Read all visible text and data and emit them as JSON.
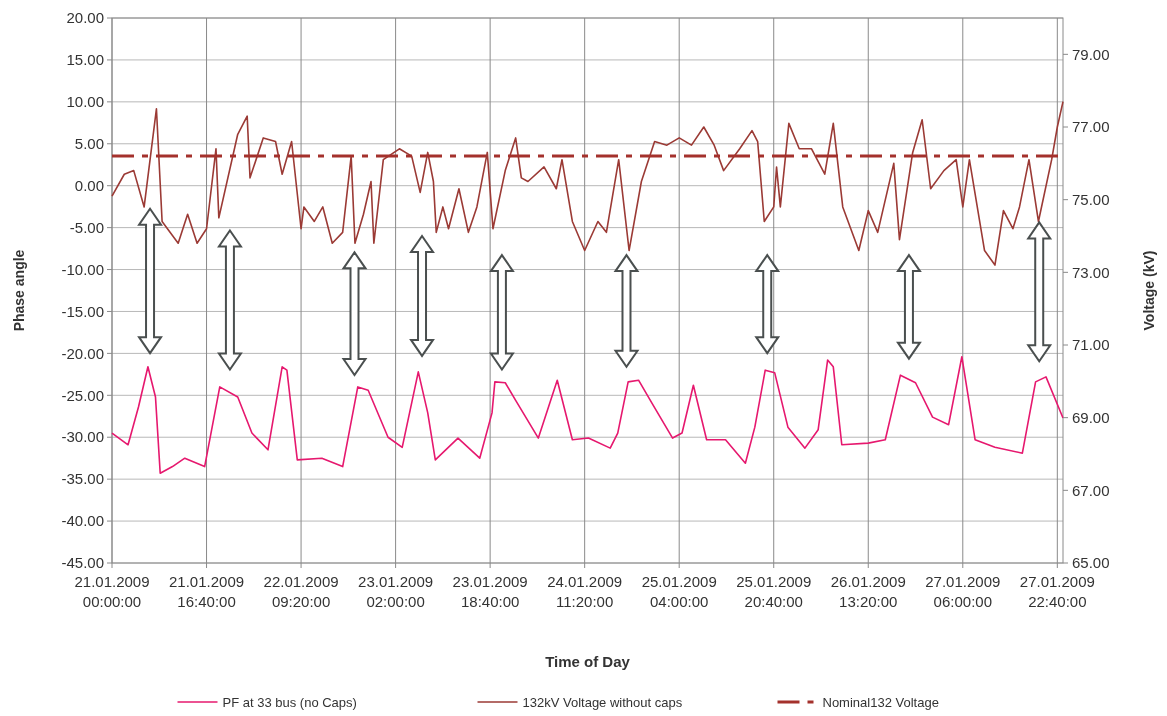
{
  "chart_data": {
    "type": "line",
    "xlabel": "Time of Day",
    "ylabel": "Phase angle",
    "y2label": "Voltage (kV)",
    "xlim": [
      "2009-01-21T00:00",
      "2009-01-27T23:40"
    ],
    "xticks": [
      {
        "value": "2009-01-21T00:00",
        "label": "21.01.2009 00:00:00"
      },
      {
        "value": "2009-01-21T16:40",
        "label": "21.01.2009 16:40:00"
      },
      {
        "value": "2009-01-22T09:20",
        "label": "22.01.2009 09:20:00"
      },
      {
        "value": "2009-01-23T02:00",
        "label": "23.01.2009 02:00:00"
      },
      {
        "value": "2009-01-23T18:40",
        "label": "23.01.2009 18:40:00"
      },
      {
        "value": "2009-01-24T11:20",
        "label": "24.01.2009 11:20:00"
      },
      {
        "value": "2009-01-25T04:00",
        "label": "25.01.2009 04:00:00"
      },
      {
        "value": "2009-01-25T20:40",
        "label": "25.01.2009 20:40:00"
      },
      {
        "value": "2009-01-26T13:20",
        "label": "26.01.2009 13:20:00"
      },
      {
        "value": "2009-01-27T06:00",
        "label": "27.01.2009 06:00:00"
      },
      {
        "value": "2009-01-27T22:40",
        "label": "27.01.2009 22:40:00"
      }
    ],
    "ylim": [
      -45,
      20
    ],
    "yticks": [
      {
        "value": 20,
        "label": "20.00"
      },
      {
        "value": 15,
        "label": "15.00"
      },
      {
        "value": 10,
        "label": "10.00"
      },
      {
        "value": 5,
        "label": "5.00"
      },
      {
        "value": 0,
        "label": "0.00"
      },
      {
        "value": -5,
        "label": "-5.00"
      },
      {
        "value": -10,
        "label": "-10.00"
      },
      {
        "value": -15,
        "label": "-15.00"
      },
      {
        "value": -20,
        "label": "-20.00"
      },
      {
        "value": -25,
        "label": "-25.00"
      },
      {
        "value": -30,
        "label": "-30.00"
      },
      {
        "value": -35,
        "label": "-35.00"
      },
      {
        "value": -40,
        "label": "-40.00"
      },
      {
        "value": -45,
        "label": "-45.00"
      }
    ],
    "y2lim": [
      65,
      80
    ],
    "y2ticks": [
      {
        "value": 65,
        "label": "65.00"
      },
      {
        "value": 67,
        "label": "67.00"
      },
      {
        "value": 69,
        "label": "69.00"
      },
      {
        "value": 71,
        "label": "71.00"
      },
      {
        "value": 73,
        "label": "73.00"
      },
      {
        "value": 75,
        "label": "75.00"
      },
      {
        "value": 77,
        "label": "77.00"
      },
      {
        "value": 79,
        "label": "79.00"
      }
    ],
    "grid": true,
    "legend": "bottom",
    "series": [
      {
        "name": "PF at 33 bus (no Caps)",
        "color": "#e6186e",
        "line_style": "solid",
        "x": [
          "2009-01-21T00:00",
          "2009-01-21T02:50",
          "2009-01-21T04:40",
          "2009-01-21T06:20",
          "2009-01-21T07:40",
          "2009-01-21T08:30",
          "2009-01-21T10:40",
          "2009-01-21T12:50",
          "2009-01-21T16:20",
          "2009-01-21T19:00",
          "2009-01-21T22:10",
          "2009-01-22T00:40",
          "2009-01-22T03:30",
          "2009-01-22T06:00",
          "2009-01-22T06:50",
          "2009-01-22T08:40",
          "2009-01-22T13:00",
          "2009-01-22T16:40",
          "2009-01-22T19:20",
          "2009-01-22T21:10",
          "2009-01-23T00:40",
          "2009-01-23T03:10",
          "2009-01-23T06:00",
          "2009-01-23T07:40",
          "2009-01-23T09:00",
          "2009-01-23T13:00",
          "2009-01-23T16:50",
          "2009-01-23T19:00",
          "2009-01-23T19:30",
          "2009-01-23T21:20",
          "2009-01-23T23:10",
          "2009-01-24T03:10",
          "2009-01-24T06:30",
          "2009-01-24T09:10",
          "2009-01-24T12:00",
          "2009-01-24T15:50",
          "2009-01-24T17:10",
          "2009-01-24T19:00",
          "2009-01-24T20:50",
          "2009-01-24T23:10",
          "2009-01-25T02:50",
          "2009-01-25T04:30",
          "2009-01-25T06:30",
          "2009-01-25T08:50",
          "2009-01-25T12:10",
          "2009-01-25T15:40",
          "2009-01-25T17:20",
          "2009-01-25T19:10",
          "2009-01-25T20:50",
          "2009-01-25T23:10",
          "2009-01-26T02:10",
          "2009-01-26T04:30",
          "2009-01-26T06:10",
          "2009-01-26T07:10",
          "2009-01-26T08:40",
          "2009-01-26T13:20",
          "2009-01-26T16:20",
          "2009-01-26T19:00",
          "2009-01-26T21:40",
          "2009-01-27T00:40",
          "2009-01-27T03:30",
          "2009-01-27T05:50",
          "2009-01-27T08:10",
          "2009-01-27T11:40",
          "2009-01-27T16:30",
          "2009-01-27T18:50",
          "2009-01-27T20:40",
          "2009-01-27T23:40"
        ],
        "values": [
          -29.5,
          -30.9,
          -26.4,
          -21.6,
          -25.2,
          -34.3,
          -33.5,
          -32.5,
          -33.5,
          -24.0,
          -25.2,
          -29.5,
          -31.5,
          -21.6,
          -22.0,
          -32.7,
          -32.5,
          -33.5,
          -24.0,
          -24.4,
          -30.0,
          -31.2,
          -22.2,
          -27.1,
          -32.7,
          -30.1,
          -32.5,
          -27.1,
          -23.4,
          -23.5,
          -25.6,
          -30.1,
          -23.2,
          -30.3,
          -30.1,
          -31.3,
          -29.5,
          -23.4,
          -23.2,
          -25.9,
          -30.1,
          -29.5,
          -23.8,
          -30.3,
          -30.3,
          -33.1,
          -28.8,
          -22.0,
          -22.3,
          -28.8,
          -31.3,
          -29.1,
          -20.8,
          -21.6,
          -30.9,
          -30.7,
          -30.3,
          -22.6,
          -23.5,
          -27.6,
          -28.5,
          -20.4,
          -30.3,
          -31.2,
          -31.9,
          -23.4,
          -22.8,
          -27.7
        ]
      },
      {
        "name": "132kV Voltage without caps",
        "color": "#9b3a35",
        "axis": "y2",
        "line_style": "solid",
        "x": [
          "2009-01-21T00:00",
          "2009-01-21T02:10",
          "2009-01-21T03:50",
          "2009-01-21T05:40",
          "2009-01-21T07:50",
          "2009-01-21T08:50",
          "2009-01-21T11:40",
          "2009-01-21T13:20",
          "2009-01-21T15:00",
          "2009-01-21T16:40",
          "2009-01-21T18:20",
          "2009-01-21T18:50",
          "2009-01-21T22:10",
          "2009-01-21T23:50",
          "2009-01-22T00:20",
          "2009-01-22T02:40",
          "2009-01-22T04:50",
          "2009-01-22T06:00",
          "2009-01-22T07:40",
          "2009-01-22T09:20",
          "2009-01-22T09:50",
          "2009-01-22T11:40",
          "2009-01-22T13:10",
          "2009-01-22T14:50",
          "2009-01-22T16:40",
          "2009-01-22T18:10",
          "2009-01-22T18:50",
          "2009-01-22T20:20",
          "2009-01-22T21:40",
          "2009-01-22T22:10",
          "2009-01-22T23:50",
          "2009-01-23T02:40",
          "2009-01-23T04:50",
          "2009-01-23T06:20",
          "2009-01-23T07:40",
          "2009-01-23T08:40",
          "2009-01-23T09:10",
          "2009-01-23T10:20",
          "2009-01-23T11:20",
          "2009-01-23T13:10",
          "2009-01-23T14:50",
          "2009-01-23T16:20",
          "2009-01-23T18:10",
          "2009-01-23T19:10",
          "2009-01-23T21:20",
          "2009-01-23T23:10",
          "2009-01-24T00:10",
          "2009-01-24T01:20",
          "2009-01-24T04:10",
          "2009-01-24T06:20",
          "2009-01-24T07:20",
          "2009-01-24T09:10",
          "2009-01-24T11:20",
          "2009-01-24T13:40",
          "2009-01-24T15:10",
          "2009-01-24T17:20",
          "2009-01-24T19:10",
          "2009-01-24T21:20",
          "2009-01-24T23:40",
          "2009-01-25T01:50",
          "2009-01-25T04:00",
          "2009-01-25T06:10",
          "2009-01-25T08:20",
          "2009-01-25T10:10",
          "2009-01-25T11:50",
          "2009-01-25T14:40",
          "2009-01-25T16:50",
          "2009-01-25T17:50",
          "2009-01-25T19:00",
          "2009-01-25T20:40",
          "2009-01-25T21:10",
          "2009-01-25T21:50",
          "2009-01-25T23:20",
          "2009-01-26T01:10",
          "2009-01-26T03:20",
          "2009-01-26T05:40",
          "2009-01-26T07:10",
          "2009-01-26T08:50",
          "2009-01-26T11:40",
          "2009-01-26T13:20",
          "2009-01-26T15:00",
          "2009-01-26T17:50",
          "2009-01-26T18:50",
          "2009-01-26T21:10",
          "2009-01-26T22:50",
          "2009-01-27T00:20",
          "2009-01-27T02:40",
          "2009-01-27T04:50",
          "2009-01-27T06:00",
          "2009-01-27T07:10",
          "2009-01-27T09:50",
          "2009-01-27T11:40",
          "2009-01-27T13:10",
          "2009-01-27T14:50",
          "2009-01-27T16:00",
          "2009-01-27T17:40",
          "2009-01-27T19:20",
          "2009-01-27T21:40",
          "2009-01-27T22:40",
          "2009-01-27T23:40"
        ],
        "values": [
          75.1,
          75.7,
          75.8,
          74.8,
          77.5,
          74.4,
          73.8,
          74.6,
          73.8,
          74.2,
          76.4,
          74.5,
          76.8,
          77.3,
          75.6,
          76.7,
          76.6,
          75.7,
          76.6,
          74.2,
          74.8,
          74.4,
          74.8,
          73.8,
          74.1,
          76.2,
          73.8,
          74.6,
          75.5,
          73.8,
          76.1,
          76.4,
          76.2,
          75.2,
          76.3,
          75.5,
          74.1,
          74.8,
          74.2,
          75.3,
          74.1,
          74.8,
          76.3,
          74.2,
          75.8,
          76.7,
          75.6,
          75.5,
          75.9,
          75.3,
          76.1,
          74.4,
          73.6,
          74.4,
          74.1,
          76.1,
          73.6,
          75.5,
          76.6,
          76.5,
          76.7,
          76.5,
          77.0,
          76.5,
          75.8,
          76.4,
          76.9,
          76.6,
          74.4,
          74.8,
          75.9,
          74.8,
          77.1,
          76.4,
          76.4,
          75.7,
          77.1,
          74.8,
          73.6,
          74.7,
          74.1,
          76.0,
          73.9,
          76.3,
          77.2,
          75.3,
          75.8,
          76.1,
          74.8,
          76.1,
          73.6,
          73.2,
          74.7,
          74.2,
          74.8,
          76.1,
          74.4,
          76.1,
          77.0,
          77.7
        ]
      },
      {
        "name": "Nominal132 Voltage",
        "color": "#a4312c",
        "axis": "y2",
        "line_style": "dashed",
        "x": [
          "2009-01-21T00:00",
          "2009-01-27T23:40"
        ],
        "values": [
          76.2,
          76.2
        ]
      }
    ]
  }
}
